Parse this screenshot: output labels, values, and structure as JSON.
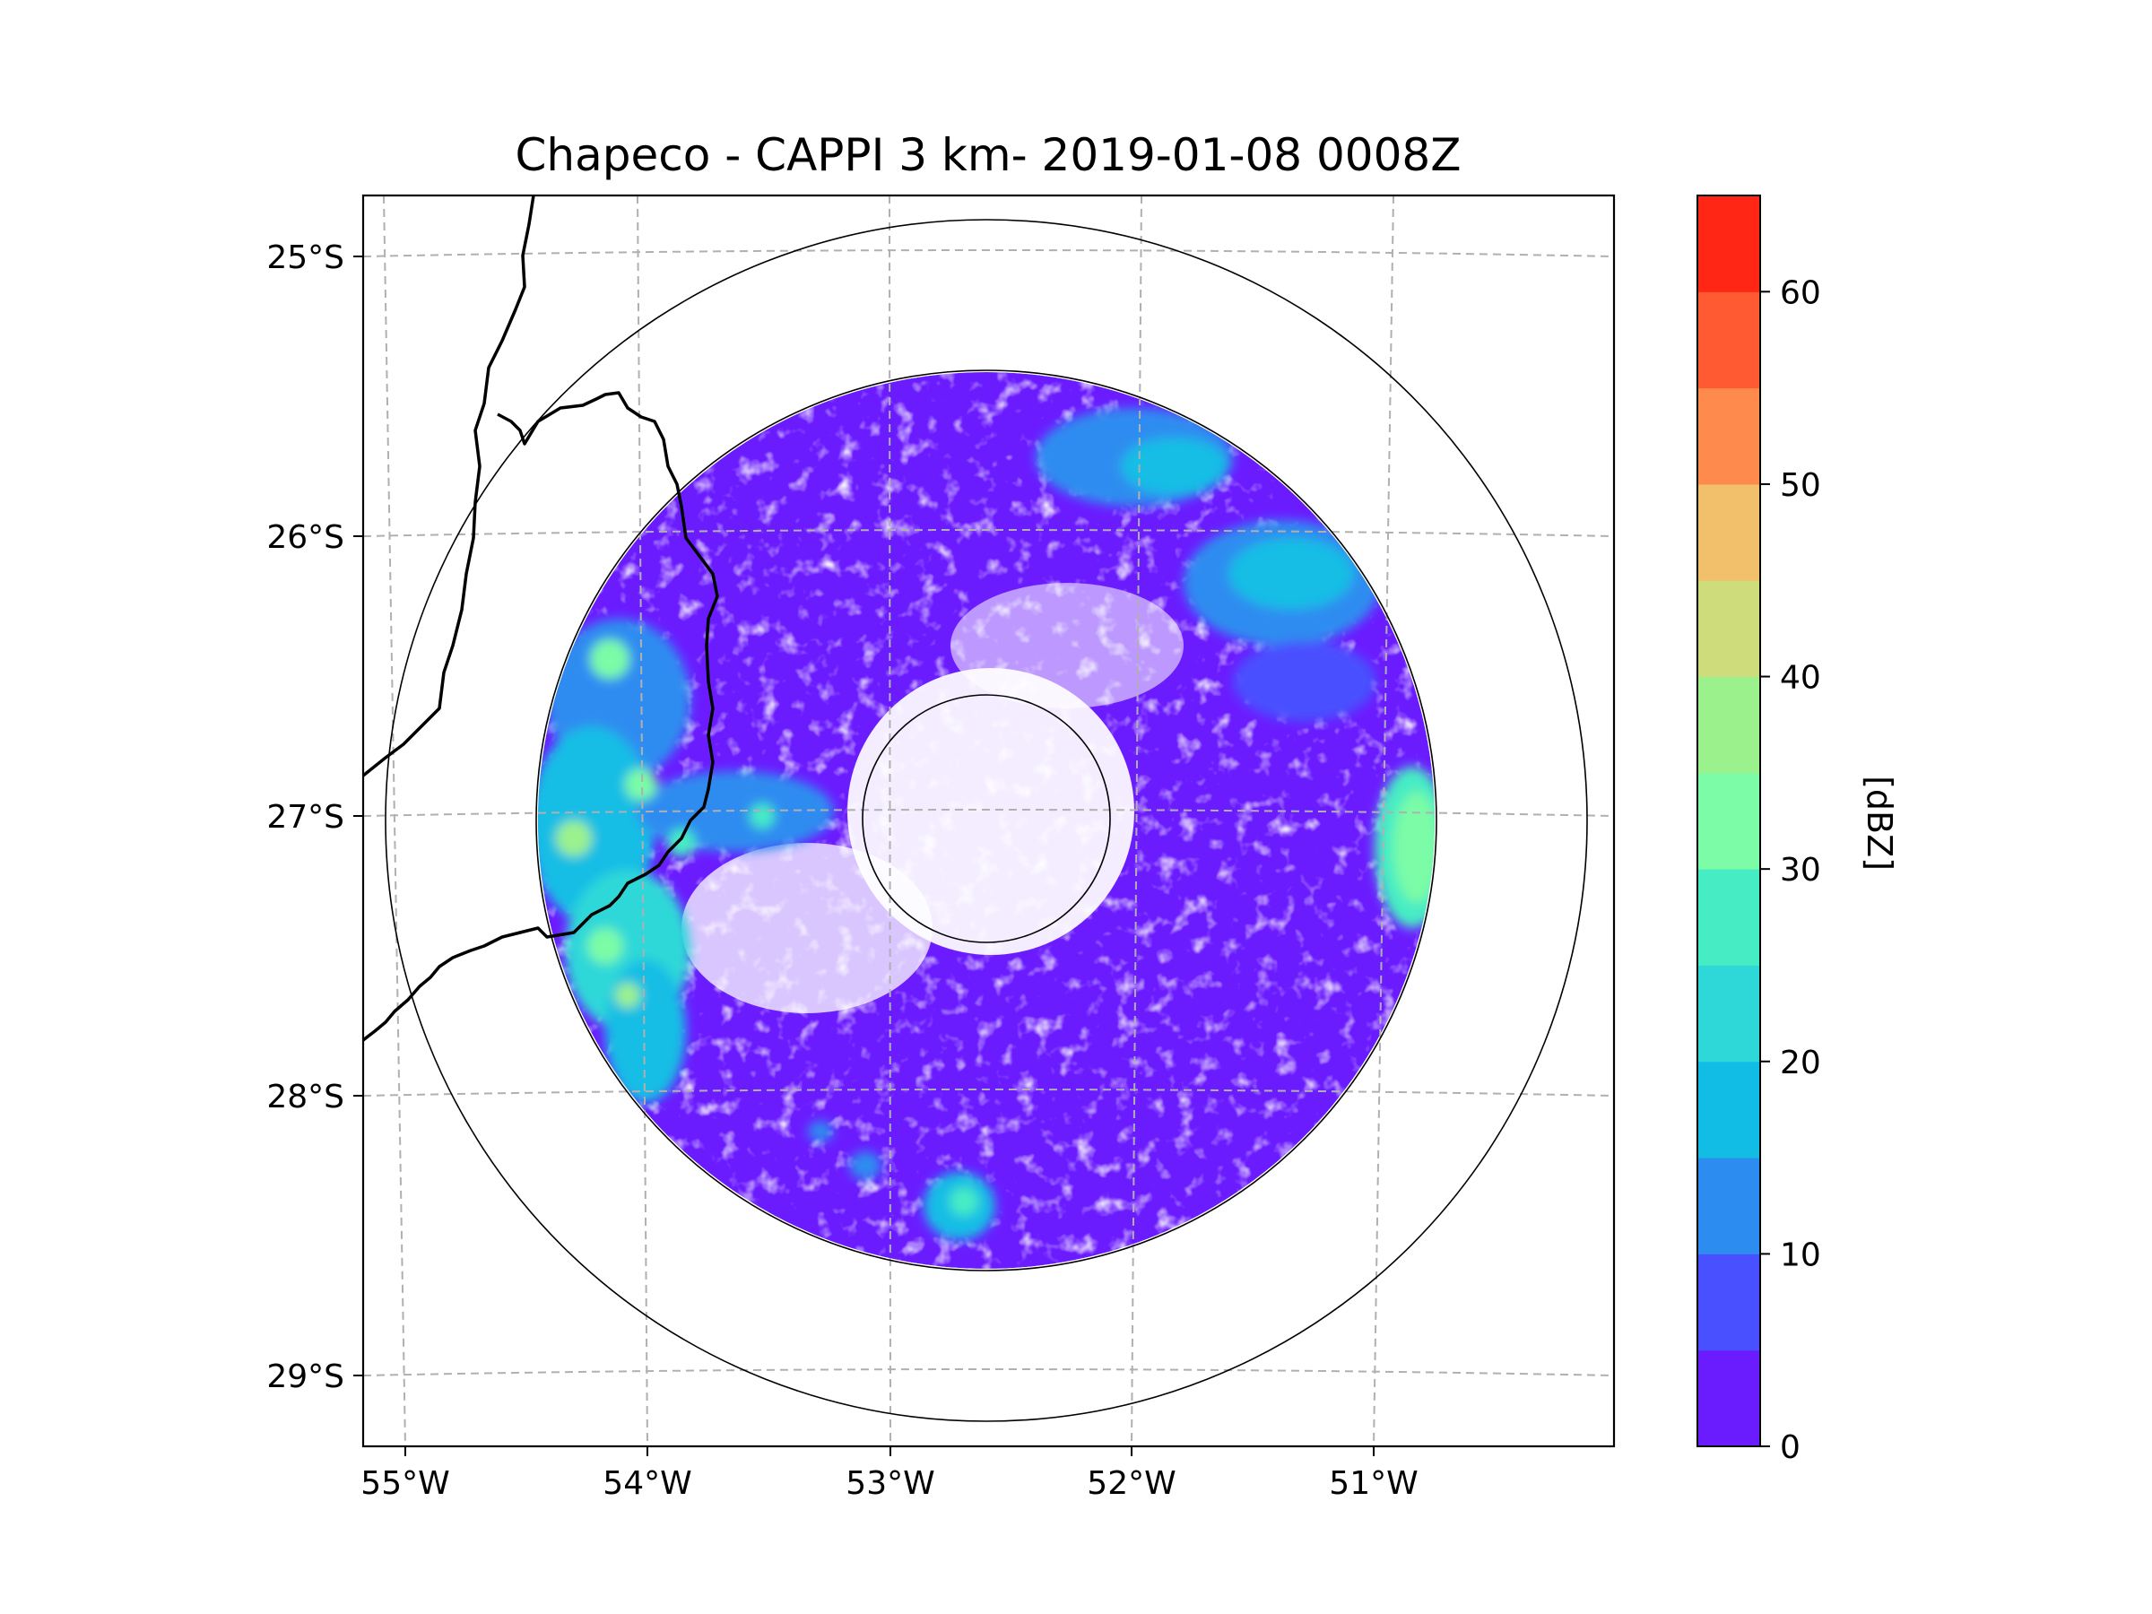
{
  "chart_data": {
    "type": "heatmap",
    "title": "Chapeco - CAPPI 3 km- 2019-01-08 0008Z",
    "radar_site": "Chapeco",
    "product": "CAPPI 3 km",
    "datetime": "2019-01-08 0008Z",
    "longitude_ticks": [
      "55°W",
      "54°W",
      "53°W",
      "52°W",
      "51°W"
    ],
    "latitude_ticks": [
      "25°S",
      "26°S",
      "27°S",
      "28°S",
      "29°S"
    ],
    "lon_range_deg": [
      -55.2,
      -50.05
    ],
    "lat_range_deg": [
      -29.3,
      -24.8
    ],
    "gridlines": true,
    "range_rings": 3,
    "colorbar": {
      "label": "[dBZ]",
      "ticks": [
        "0",
        "10",
        "20",
        "30",
        "40",
        "50",
        "60"
      ],
      "range": [
        0,
        65
      ],
      "levels": [
        {
          "min": 0,
          "max": 5,
          "color": "#6b1cff"
        },
        {
          "min": 5,
          "max": 10,
          "color": "#4950ff"
        },
        {
          "min": 10,
          "max": 15,
          "color": "#2d8cf0"
        },
        {
          "min": 15,
          "max": 20,
          "color": "#12bde5"
        },
        {
          "min": 20,
          "max": 25,
          "color": "#2ed8d8"
        },
        {
          "min": 25,
          "max": 30,
          "color": "#46ecc4"
        },
        {
          "min": 30,
          "max": 35,
          "color": "#7cfca6"
        },
        {
          "min": 35,
          "max": 40,
          "color": "#9bf28c"
        },
        {
          "min": 40,
          "max": 45,
          "color": "#cfdc7c"
        },
        {
          "min": 45,
          "max": 50,
          "color": "#f2c06a"
        },
        {
          "min": 50,
          "max": 55,
          "color": "#ff8a4e"
        },
        {
          "min": 55,
          "max": 60,
          "color": "#ff5a32"
        },
        {
          "min": 60,
          "max": 65,
          "color": "#ff2616"
        }
      ]
    },
    "echo_regions": [
      {
        "area": "widespread weak echo covering most of the scan",
        "dbz": 3
      },
      {
        "area": "north-east band",
        "dbz": 17
      },
      {
        "area": "western border cells",
        "dbz": 30
      },
      {
        "area": "eastern edge cell near 51°W",
        "dbz": 32
      },
      {
        "area": "southern cells near 28.5°S",
        "dbz": 25
      }
    ]
  }
}
